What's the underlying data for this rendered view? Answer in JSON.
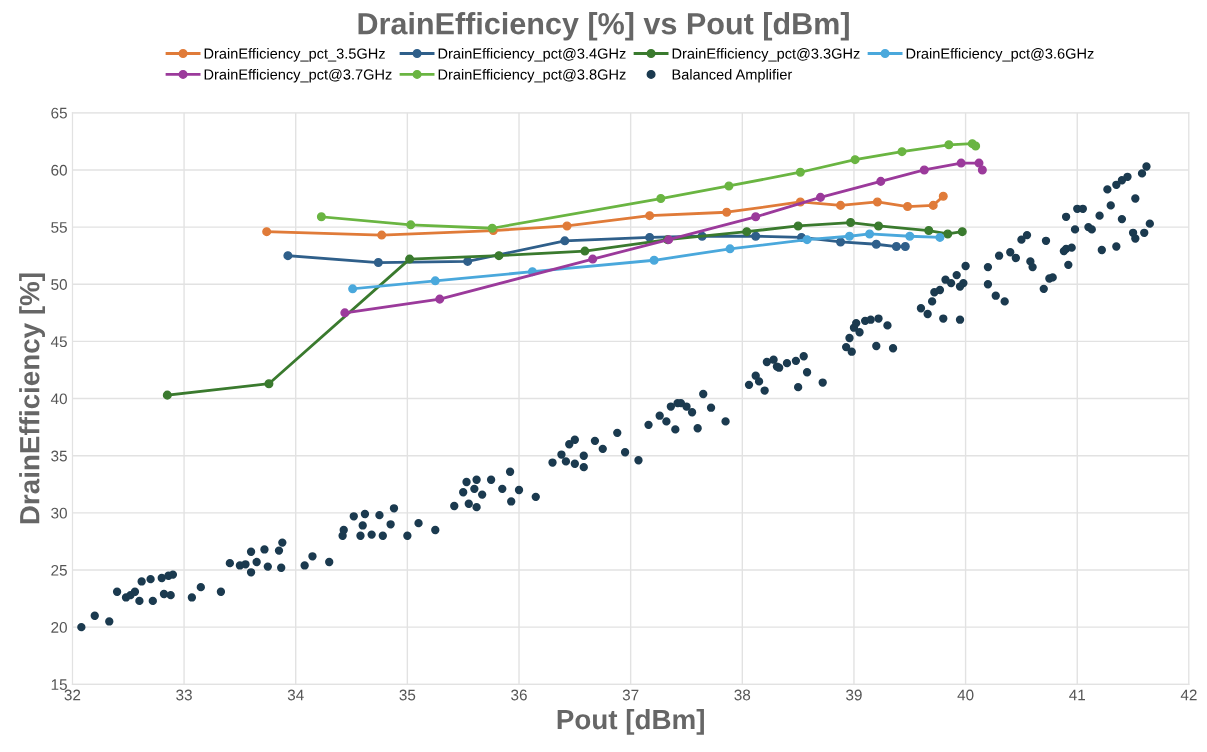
{
  "chart_data": {
    "type": "line",
    "title": "DrainEfficiency [%] vs Pout [dBm]",
    "xlabel": "Pout [dBm]",
    "ylabel": "DrainEfficiency [%]",
    "xlim": [
      32,
      42
    ],
    "xticks": [
      32,
      33,
      34,
      35,
      36,
      37,
      38,
      39,
      40,
      41,
      42
    ],
    "ylim": [
      15,
      65
    ],
    "yticks": [
      15,
      20,
      25,
      30,
      35,
      40,
      45,
      50,
      55,
      60,
      65
    ],
    "grid": true,
    "legend": "top",
    "marker": "circle",
    "line_style": "solid",
    "series": [
      {
        "name": "DrainEfficiency_pct_3.5GHz",
        "color": "#e07b39",
        "x": [
          33.74,
          34.77,
          35.77,
          36.43,
          37.17,
          37.86,
          38.52,
          38.88,
          39.21,
          39.48,
          39.71,
          39.8
        ],
        "values": [
          54.6,
          54.3,
          54.7,
          55.1,
          56.0,
          56.3,
          57.2,
          56.9,
          57.2,
          56.8,
          56.9,
          57.7
        ]
      },
      {
        "name": "DrainEfficiency_pct@3.4GHz",
        "color": "#2f5f8a",
        "x": [
          33.93,
          34.74,
          35.54,
          36.41,
          37.17,
          37.64,
          38.12,
          38.53,
          38.88,
          39.2,
          39.38,
          39.46
        ],
        "values": [
          52.5,
          51.9,
          52.0,
          53.8,
          54.1,
          54.2,
          54.2,
          54.1,
          53.7,
          53.5,
          53.3,
          53.3
        ]
      },
      {
        "name": "DrainEfficiency_pct@3.3GHz",
        "color": "#3a7a2e",
        "x": [
          32.85,
          33.76,
          35.02,
          35.82,
          36.59,
          37.33,
          38.04,
          38.5,
          38.97,
          39.22,
          39.67,
          39.84,
          39.97
        ],
        "values": [
          40.3,
          41.3,
          52.2,
          52.5,
          52.9,
          53.9,
          54.6,
          55.1,
          55.4,
          55.1,
          54.7,
          54.4,
          54.6
        ]
      },
      {
        "name": "DrainEfficiency_pct@3.6GHz",
        "color": "#4aa8dc",
        "x": [
          34.51,
          35.25,
          36.12,
          37.21,
          37.89,
          38.58,
          38.96,
          39.14,
          39.5,
          39.77
        ],
        "values": [
          49.6,
          50.3,
          51.1,
          52.1,
          53.1,
          53.9,
          54.2,
          54.4,
          54.2,
          54.1
        ]
      },
      {
        "name": "DrainEfficiency_pct@3.7GHz",
        "color": "#9b3a9b",
        "x": [
          34.44,
          35.29,
          36.66,
          37.34,
          38.12,
          38.7,
          39.24,
          39.63,
          39.96,
          40.12,
          40.15
        ],
        "values": [
          47.5,
          48.7,
          52.2,
          53.9,
          55.9,
          57.6,
          59.0,
          60.0,
          60.6,
          60.6,
          60.0
        ]
      },
      {
        "name": "DrainEfficiency_pct@3.8GHz",
        "color": "#6ab542",
        "x": [
          34.23,
          35.03,
          35.76,
          37.27,
          37.88,
          38.52,
          39.01,
          39.43,
          39.85,
          40.06,
          40.09
        ],
        "values": [
          55.9,
          55.2,
          54.9,
          57.5,
          58.6,
          59.8,
          60.9,
          61.6,
          62.2,
          62.3,
          62.1
        ]
      },
      {
        "name": "Balanced Amplifier",
        "type": "scatter",
        "color": "#1b3a4f",
        "x": [
          32.08,
          32.2,
          32.33,
          32.4,
          32.48,
          32.52,
          32.56,
          32.6,
          32.62,
          32.7,
          32.72,
          32.8,
          32.82,
          32.86,
          32.88,
          32.9,
          33.07,
          33.15,
          33.33,
          33.41,
          33.5,
          33.55,
          33.6,
          33.6,
          33.65,
          33.72,
          33.75,
          33.85,
          33.87,
          33.88,
          34.08,
          34.15,
          34.3,
          34.42,
          34.43,
          34.52,
          34.58,
          34.6,
          34.62,
          34.68,
          34.75,
          34.78,
          34.85,
          34.88,
          35.0,
          35.1,
          35.25,
          35.42,
          35.5,
          35.53,
          35.55,
          35.6,
          35.62,
          35.62,
          35.67,
          35.75,
          35.85,
          35.92,
          36.0,
          36.15,
          35.93,
          36.3,
          36.38,
          36.42,
          36.45,
          36.5,
          36.5,
          36.58,
          36.58,
          36.68,
          36.75,
          36.88,
          36.95,
          37.07,
          37.16,
          37.26,
          37.32,
          37.36,
          37.4,
          37.42,
          37.45,
          37.5,
          37.55,
          37.6,
          37.65,
          37.72,
          37.85,
          38.06,
          38.12,
          38.15,
          38.2,
          38.22,
          38.28,
          38.31,
          38.33,
          38.4,
          38.48,
          38.5,
          38.55,
          38.58,
          38.72,
          38.93,
          38.96,
          38.98,
          39.0,
          39.02,
          39.1,
          39.15,
          39.22,
          39.2,
          39.3,
          39.35,
          39.05,
          39.6,
          39.66,
          39.7,
          39.72,
          39.77,
          39.8,
          39.82,
          39.87,
          39.92,
          39.95,
          39.98,
          40.0,
          39.95,
          40.2,
          40.2,
          40.27,
          40.3,
          40.35,
          40.4,
          40.45,
          40.5,
          40.55,
          40.58,
          40.6,
          40.7,
          40.72,
          40.75,
          40.78,
          40.88,
          40.9,
          40.92,
          40.95,
          40.9,
          41.0,
          41.05,
          41.1,
          41.13,
          41.2,
          41.22,
          41.3,
          41.35,
          41.35,
          41.4,
          41.45,
          41.5,
          41.52,
          41.58,
          41.6,
          41.62,
          41.65,
          41.4,
          41.52,
          41.27,
          40.98
        ],
        "values": [
          20.0,
          21.0,
          20.5,
          23.1,
          22.6,
          22.8,
          23.1,
          22.3,
          24.0,
          24.2,
          22.3,
          24.3,
          22.9,
          24.5,
          22.8,
          24.6,
          22.6,
          23.5,
          23.1,
          25.6,
          25.4,
          25.5,
          26.6,
          24.8,
          25.7,
          26.8,
          25.3,
          26.7,
          25.2,
          27.4,
          25.4,
          26.2,
          25.7,
          28.0,
          28.5,
          29.7,
          28.0,
          28.9,
          29.9,
          28.1,
          29.8,
          28.0,
          29.0,
          30.4,
          28.0,
          29.1,
          28.5,
          30.6,
          31.8,
          32.7,
          30.8,
          32.1,
          30.5,
          32.9,
          31.6,
          32.9,
          32.1,
          33.6,
          32.0,
          31.4,
          31.0,
          34.4,
          35.1,
          34.5,
          36.0,
          34.3,
          36.4,
          35.0,
          34.0,
          36.3,
          35.6,
          37.0,
          35.3,
          34.6,
          37.7,
          38.5,
          38.0,
          39.3,
          37.3,
          39.6,
          39.6,
          39.3,
          38.8,
          37.4,
          40.4,
          39.2,
          38.0,
          41.2,
          42.0,
          41.5,
          40.7,
          43.2,
          43.4,
          42.8,
          42.7,
          43.1,
          43.3,
          41.0,
          43.7,
          42.3,
          41.4,
          44.5,
          45.3,
          44.1,
          46.2,
          46.6,
          46.8,
          46.9,
          47.0,
          44.6,
          46.4,
          44.4,
          45.8,
          47.9,
          47.4,
          48.5,
          49.3,
          49.5,
          47.0,
          50.4,
          50.1,
          50.8,
          46.9,
          50.1,
          51.6,
          49.8,
          50.0,
          51.5,
          49.0,
          52.5,
          48.5,
          52.8,
          52.3,
          53.9,
          54.3,
          52.0,
          51.5,
          49.6,
          53.8,
          50.5,
          50.6,
          52.9,
          53.1,
          51.7,
          53.2,
          55.9,
          56.6,
          56.6,
          55.0,
          54.8,
          56.0,
          53.0,
          56.9,
          53.3,
          58.7,
          59.1,
          59.4,
          54.5,
          57.5,
          59.7,
          54.5,
          60.3,
          55.3,
          55.7,
          54.0,
          58.3,
          54.8
        ]
      }
    ]
  }
}
